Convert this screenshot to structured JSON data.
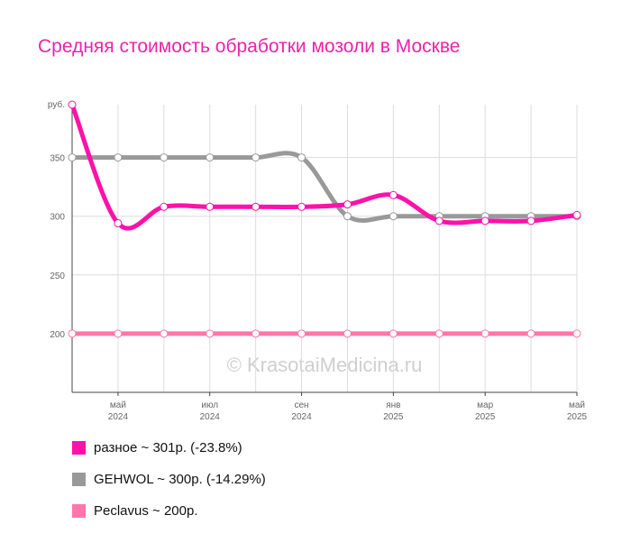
{
  "page": {
    "title": "Средняя стоимость обработки мозоли в Москве",
    "watermark": "© KrasotaiMedicina.ru"
  },
  "chart_data": {
    "type": "line",
    "title": "Средняя стоимость обработки мозоли в Москве",
    "y_unit_label": "руб.",
    "ylim": [
      150,
      395
    ],
    "yticks": [
      200,
      250,
      300,
      350
    ],
    "grid": true,
    "legend_position": "bottom",
    "x_index": [
      0,
      1,
      2,
      3,
      4,
      5,
      6,
      7,
      8,
      9,
      10,
      11
    ],
    "xticks": [
      {
        "index": 1,
        "label": "май",
        "year": "2024"
      },
      {
        "index": 3,
        "label": "июл",
        "year": "2024"
      },
      {
        "index": 5,
        "label": "сен",
        "year": "2024"
      },
      {
        "index": 7,
        "label": "янв",
        "year": "2025"
      },
      {
        "index": 9,
        "label": "мар",
        "year": "2025"
      },
      {
        "index": 11,
        "label": "май",
        "year": "2025"
      }
    ],
    "series": [
      {
        "name": "Peclavus",
        "color": "#ff77aa",
        "values": [
          200,
          200,
          200,
          200,
          200,
          200,
          200,
          200,
          200,
          200,
          200,
          200
        ]
      },
      {
        "name": "GEHWOL",
        "color": "#999999",
        "values": [
          350,
          350,
          350,
          350,
          350,
          350,
          300,
          300,
          300,
          300,
          300,
          300
        ]
      },
      {
        "name": "разное",
        "color": "#ff11aa",
        "values": [
          395,
          294,
          308,
          308,
          308,
          308,
          310,
          318,
          296,
          296,
          296,
          301
        ]
      }
    ]
  },
  "legend": [
    {
      "label": "разное ~ 301р. (-23.8%)",
      "color": "#ff11aa"
    },
    {
      "label": "GEHWOL ~ 300р. (-14.29%)",
      "color": "#999999"
    },
    {
      "label": "Peclavus ~ 200р.",
      "color": "#ff77aa"
    }
  ]
}
